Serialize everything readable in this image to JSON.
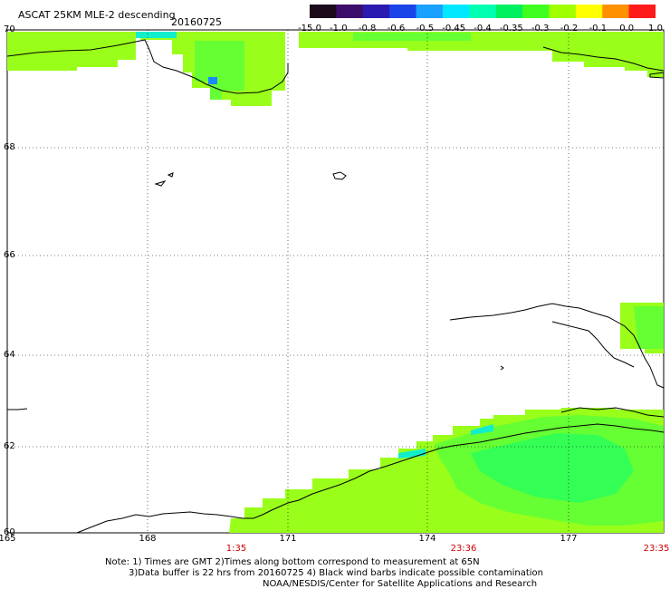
{
  "header": {
    "title": "ASCAT 25KM MLE-2 descending",
    "date": "20160725"
  },
  "colorbar": {
    "labels": [
      "-15.0",
      "-1.0",
      "-0.8",
      "-0.6",
      "-0.5",
      "-0.45",
      "-0.4",
      "-0.35",
      "-0.3",
      "-0.2",
      "-0.1",
      "0.0",
      "1.0"
    ],
    "colors": [
      "#1a0a1a",
      "#3d0d6b",
      "#2a1ab0",
      "#1a44e8",
      "#1aa0ff",
      "#00e8ff",
      "#00ffb0",
      "#00f060",
      "#40ff20",
      "#a0ff00",
      "#ffff00",
      "#ff9000",
      "#ff1a1a"
    ]
  },
  "axes": {
    "lat_labels": [
      "70",
      "68",
      "66",
      "64",
      "62",
      "60"
    ],
    "lon_labels": [
      "165",
      "168",
      "171",
      "174",
      "177"
    ],
    "time_labels": [
      "1:35",
      "23:36",
      "23:35"
    ]
  },
  "swath_colors": {
    "main": "#99ff1a",
    "mid": "#66ff33",
    "deep": "#33ff55",
    "cyan": "#11eecc",
    "blue": "#1a88ff"
  },
  "notes": {
    "line1": "Note: 1) Times are GMT 2)Times along bottom correspond to measurement at 65N",
    "line2": "3)Data buffer is 22 hrs from 20160725 4) Black wind barbs indicate possible contamination",
    "line3": "NOAA/NESDIS/Center for Satellite Applications and Research"
  }
}
